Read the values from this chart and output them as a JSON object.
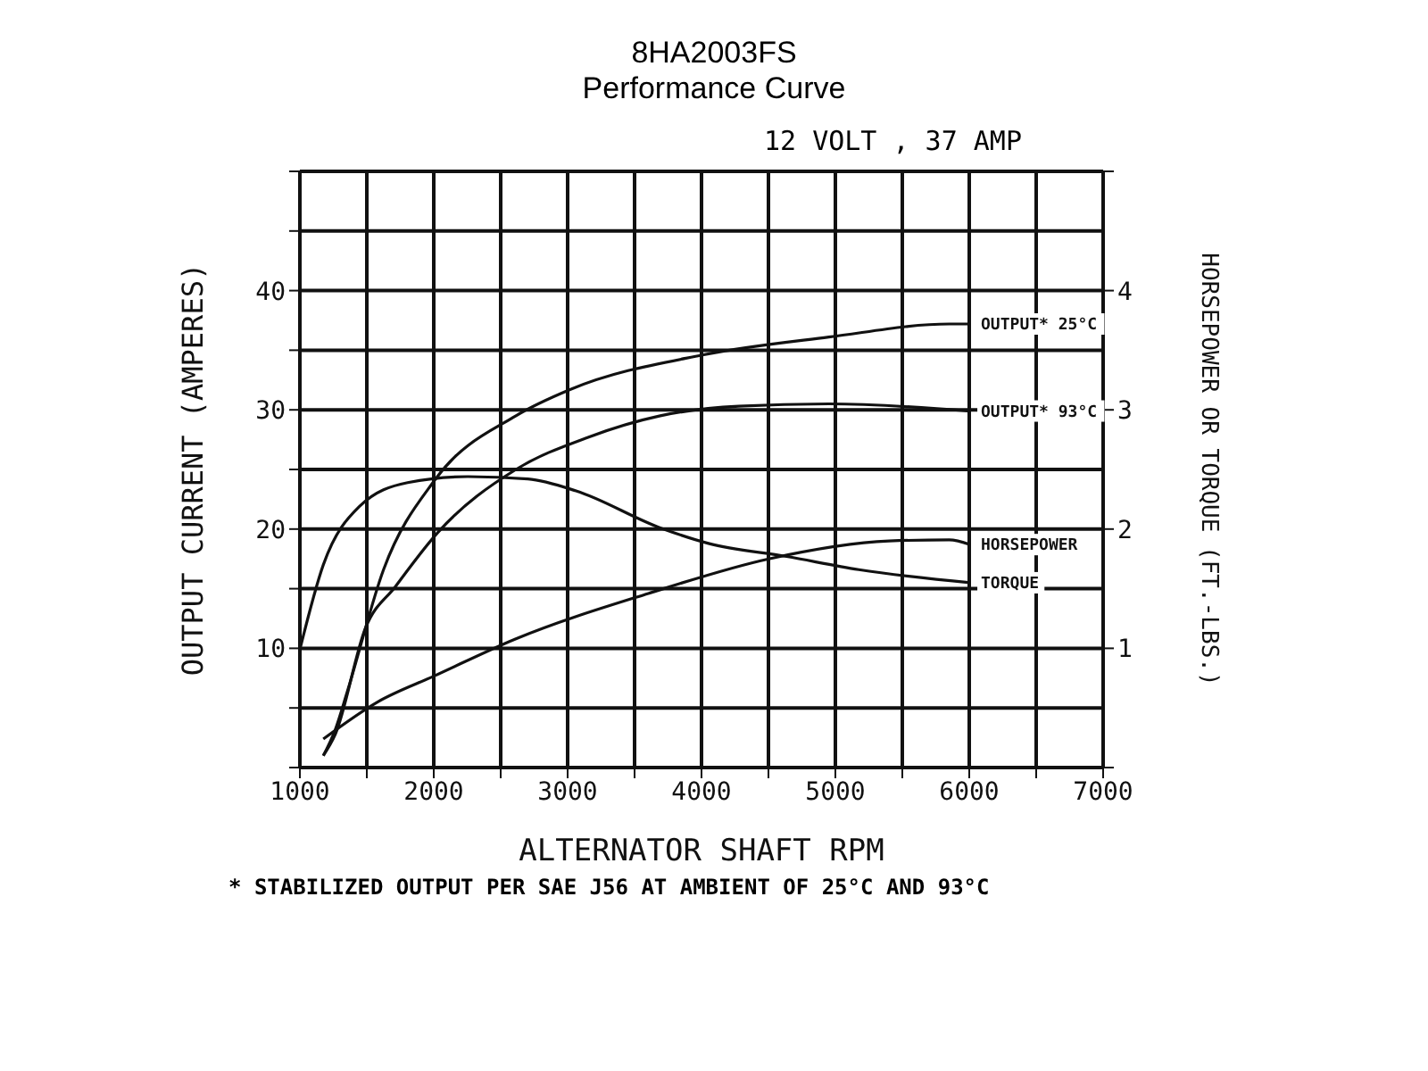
{
  "chart_data": {
    "type": "line",
    "title": "8HA2003FS",
    "subtitle": "Performance Curve",
    "xlabel": "ALTERNATOR SHAFT RPM",
    "ylabel": "OUTPUT CURRENT (AMPERES)",
    "y2label": "HORSEPOWER OR TORQUE (FT.-LBS.)",
    "annotations": [
      "12 VOLT , 37 AMP",
      "* STABILIZED OUTPUT PER SAE J56 AT AMBIENT OF 25°C AND 93°C"
    ],
    "series": [
      {
        "name": "OUTPUT* 25°C",
        "color": "#111111",
        "x": [
          1175,
          1265,
          1355,
          1625,
          2007,
          2614,
          3018,
          4007,
          4951,
          5850,
          6007
        ],
        "values": [
          1.0,
          3.2,
          6.4,
          16.6,
          24.1,
          29.5,
          31.7,
          34.6,
          36.1,
          37.2,
          37.2
        ]
      },
      {
        "name": "OUTPUT* 93°C",
        "color": "#111111",
        "x": [
          1175,
          1265,
          1490,
          1715,
          2029,
          2614,
          3153,
          3692,
          4277,
          4951,
          6007
        ],
        "values": [
          1.0,
          2.8,
          11.7,
          15.2,
          19.7,
          25.0,
          27.7,
          29.5,
          30.3,
          30.5,
          29.9
        ]
      },
      {
        "name": "HORSEPOWER",
        "color": "#111111",
        "axis": "y2",
        "x": [
          1175,
          1580,
          2007,
          2614,
          3603,
          4502,
          5400,
          5850,
          6007
        ],
        "values": [
          0.24,
          0.55,
          0.77,
          1.08,
          1.46,
          1.75,
          1.9,
          1.91,
          1.87
        ]
      },
      {
        "name": "TORQUE",
        "color": "#111111",
        "axis": "y2",
        "x": [
          1000,
          1175,
          1445,
          1805,
          2254,
          2703,
          3063,
          3692,
          4052,
          4636,
          5175,
          6007
        ],
        "values": [
          0.99,
          1.7,
          2.19,
          2.39,
          2.44,
          2.42,
          2.32,
          2.01,
          1.88,
          1.77,
          1.66,
          1.55
        ]
      }
    ],
    "xlim": [
      1000,
      7000
    ],
    "xticks": [
      1000,
      {
        "value": 1500,
        "label": null
      },
      2000,
      {
        "value": 2500,
        "label": null
      },
      3000,
      {
        "value": 3500,
        "label": null
      },
      4000,
      {
        "value": 4500,
        "label": null
      },
      5000,
      {
        "value": 5500,
        "label": null
      },
      6000,
      {
        "value": 6500,
        "label": null
      },
      7000
    ],
    "ylim": [
      0,
      50
    ],
    "yticks": [
      {
        "value": 0,
        "label": null
      },
      {
        "value": 5,
        "label": null
      },
      10,
      {
        "value": 15,
        "label": null
      },
      20,
      {
        "value": 25,
        "label": null
      },
      30,
      {
        "value": 35,
        "label": null
      },
      40,
      {
        "value": 45,
        "label": null
      },
      {
        "value": 50,
        "label": null
      }
    ],
    "y2lim": [
      0,
      5
    ],
    "y2ticks": [
      {
        "value": 0,
        "label": null
      },
      1,
      2,
      3,
      4,
      {
        "value": 5,
        "label": null
      }
    ],
    "grid": true,
    "legend": false,
    "marker": "none",
    "line_style": "solid"
  }
}
